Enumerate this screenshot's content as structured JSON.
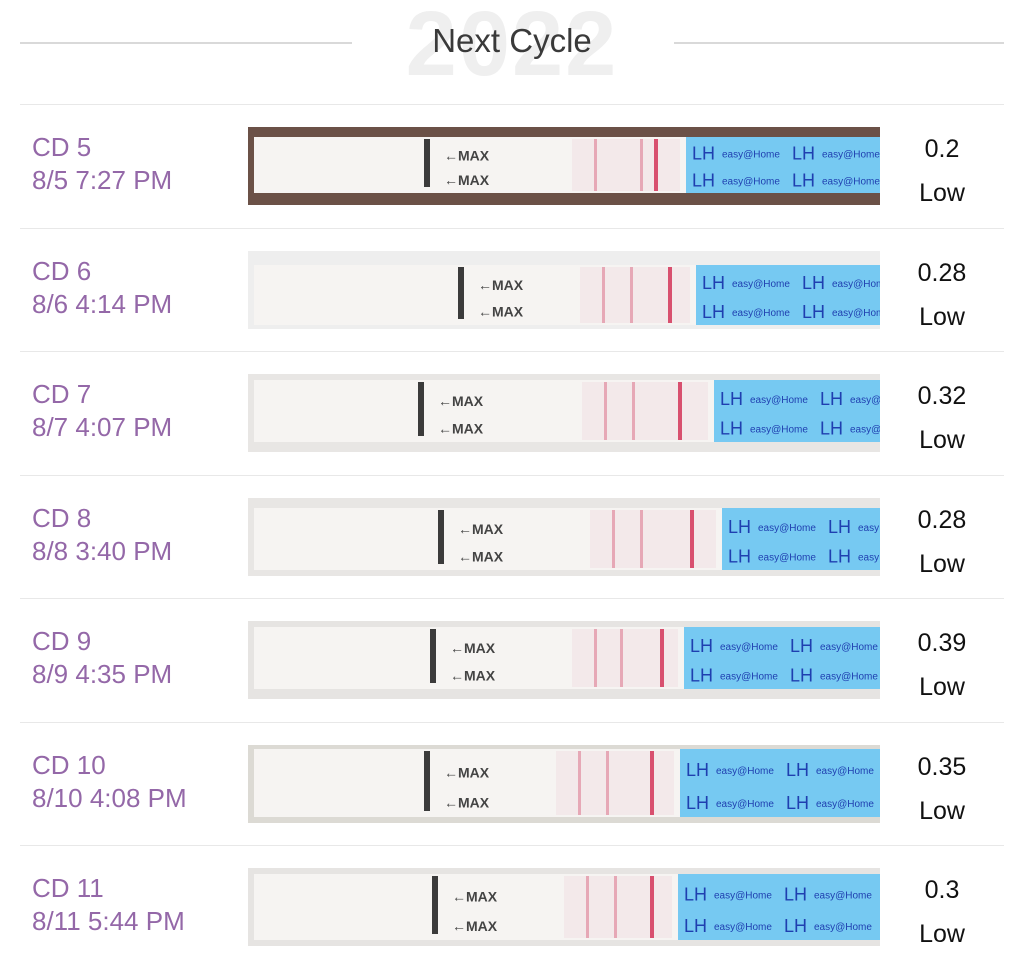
{
  "header": {
    "year": "2022",
    "title": "Next Cycle"
  },
  "colors": {
    "label_purple": "#9468a8",
    "lh_blue": "#76c9f2",
    "test_line_pink": "#d8506f"
  },
  "entries": [
    {
      "cd": "CD 5",
      "datetime": "8/5 7:27 PM",
      "value": "0.2",
      "level": "Low"
    },
    {
      "cd": "CD 6",
      "datetime": "8/6 4:14 PM",
      "value": "0.28",
      "level": "Low"
    },
    {
      "cd": "CD 7",
      "datetime": "8/7 4:07 PM",
      "value": "0.32",
      "level": "Low"
    },
    {
      "cd": "CD 8",
      "datetime": "8/8 3:40 PM",
      "value": "0.28",
      "level": "Low"
    },
    {
      "cd": "CD 9",
      "datetime": "8/9 4:35 PM",
      "value": "0.39",
      "level": "Low"
    },
    {
      "cd": "CD 10",
      "datetime": "8/10 4:08 PM",
      "value": "0.35",
      "level": "Low"
    },
    {
      "cd": "CD 11",
      "datetime": "8/11 5:44 PM",
      "value": "0.3",
      "level": "Low"
    }
  ],
  "strip_text": {
    "max": "MAX",
    "lh": "LH",
    "brand": "easy@Home"
  }
}
